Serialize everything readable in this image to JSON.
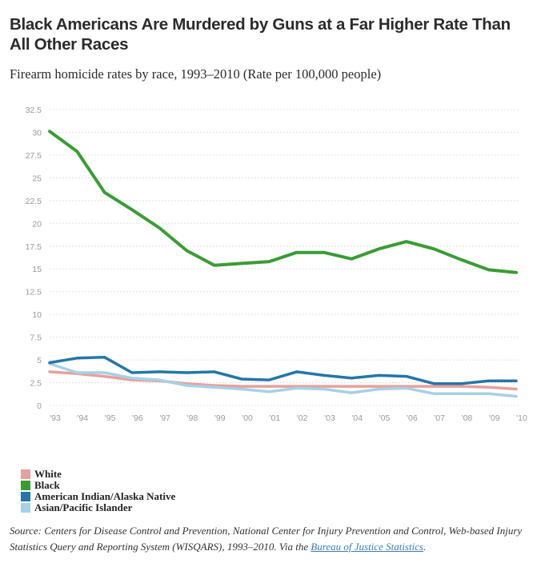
{
  "header": {
    "title": "Black Americans Are Murdered by Guns at a Far Higher Rate Than All Other Races",
    "subtitle": "Firearm homicide rates by race, 1993–2010 (Rate per 100,000 people)"
  },
  "chart_data": {
    "type": "line",
    "title": "Black Americans Are Murdered by Guns at a Far Higher Rate Than All Other Races",
    "subtitle": "Firearm homicide rates by race, 1993–2010 (Rate per 100,000 people)",
    "x_tick_labels": [
      "'93",
      "'94",
      "'95",
      "'96",
      "'97",
      "'98",
      "'99",
      "'00",
      "'01",
      "'02",
      "'03",
      "'04",
      "'05",
      "'06",
      "'07",
      "'08",
      "'09",
      "'10"
    ],
    "x": [
      1993,
      1994,
      1995,
      1996,
      1997,
      1998,
      1999,
      2000,
      2001,
      2002,
      2003,
      2004,
      2005,
      2006,
      2007,
      2008,
      2009,
      2010
    ],
    "y_ticks": [
      0,
      2.5,
      5,
      7.5,
      10,
      12.5,
      15,
      17.5,
      20,
      22.5,
      25,
      27.5,
      30,
      32.5
    ],
    "y_tick_labels": [
      "0",
      "2.5",
      "5",
      "7.5",
      "10",
      "12.5",
      "15",
      "17.5",
      "20",
      "22.5",
      "25",
      "27.5",
      "30",
      "32.5"
    ],
    "ylim": [
      0,
      32.5
    ],
    "grid": "horizontal dotted",
    "legend_position": "bottom-left",
    "series": [
      {
        "name": "White",
        "color": "#e8a09c",
        "values": [
          3.7,
          3.5,
          3.2,
          2.8,
          2.7,
          2.4,
          2.2,
          2.1,
          2.1,
          2.1,
          2.1,
          2.1,
          2.1,
          2.1,
          2.1,
          2.1,
          2.0,
          1.8
        ]
      },
      {
        "name": "Black",
        "color": "#3a9c35",
        "values": [
          30.1,
          27.9,
          23.4,
          21.5,
          19.5,
          17.0,
          15.4,
          15.6,
          15.8,
          16.8,
          16.8,
          16.1,
          17.2,
          18.0,
          17.2,
          16.0,
          14.9,
          14.6
        ]
      },
      {
        "name": "American Indian/Alaska Native",
        "color": "#2476a9",
        "values": [
          4.7,
          5.2,
          5.3,
          3.6,
          3.7,
          3.6,
          3.7,
          2.9,
          2.8,
          3.7,
          3.3,
          3.0,
          3.3,
          3.2,
          2.4,
          2.4,
          2.7,
          2.7
        ]
      },
      {
        "name": "Asian/Pacific Islander",
        "color": "#a6d1e6",
        "values": [
          4.6,
          3.6,
          3.6,
          3.0,
          2.8,
          2.2,
          2.0,
          1.8,
          1.5,
          1.9,
          1.8,
          1.4,
          1.8,
          1.9,
          1.3,
          1.3,
          1.3,
          1.0
        ]
      }
    ]
  },
  "source": {
    "text": "Source: Centers for Disease Control and Prevention, National Center for Injury Prevention and Control, Web-based Injury Statistics Query and Reporting System (WISQARS), 1993–2010. Via the ",
    "link_text": "Bureau of Justice Statistics",
    "suffix": "."
  }
}
